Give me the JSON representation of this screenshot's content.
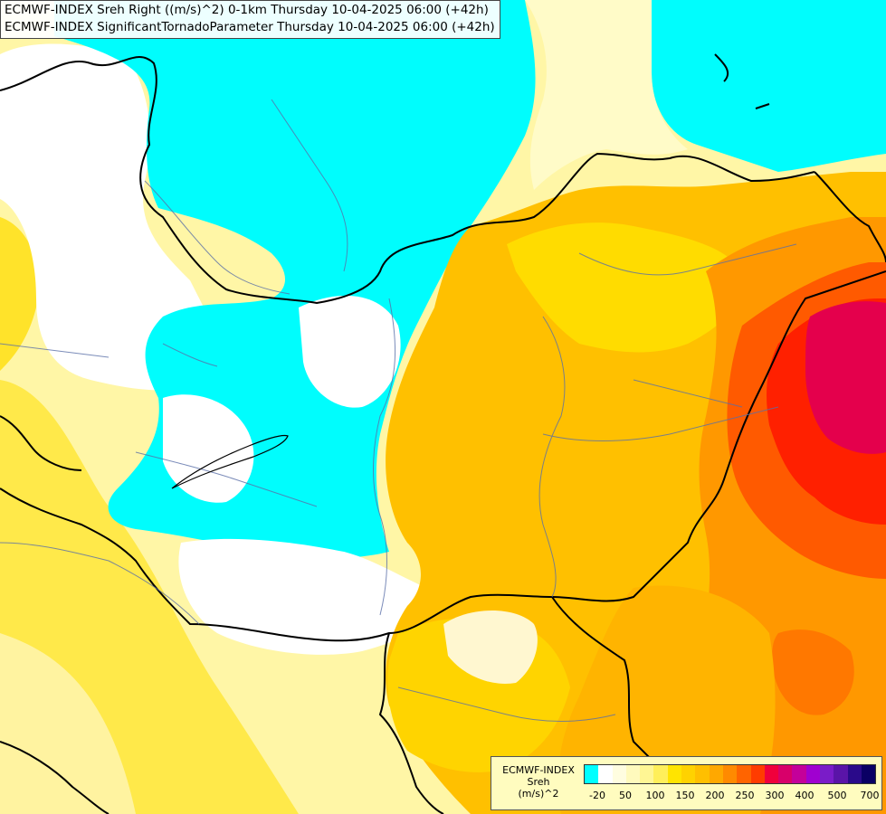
{
  "header": {
    "line1": "ECMWF-INDEX Sreh Right ((m/s)^2) 0-1km Thursday 10-04-2025 06:00 (+42h)",
    "line2": "ECMWF-INDEX SignificantTornadoParameter Thursday 10-04-2025 06:00 (+42h)"
  },
  "legend": {
    "title1": "ECMWF-INDEX",
    "title2": "Sreh",
    "title3": "(m/s)^2",
    "colors": [
      "#00ffff",
      "#ffffff",
      "#fffde0",
      "#fffabd",
      "#fff694",
      "#ffef5a",
      "#ffe400",
      "#ffd200",
      "#ffbf00",
      "#ffa800",
      "#ff8a00",
      "#ff6400",
      "#ff3c00",
      "#f0003c",
      "#d8006a",
      "#c4009a",
      "#a000d0",
      "#7a1cc8",
      "#5a14a8",
      "#2a0a8a",
      "#0a0064"
    ],
    "labels": [
      "-20",
      "50",
      "100",
      "150",
      "200",
      "250",
      "300",
      "400",
      "500",
      "700"
    ]
  }
}
